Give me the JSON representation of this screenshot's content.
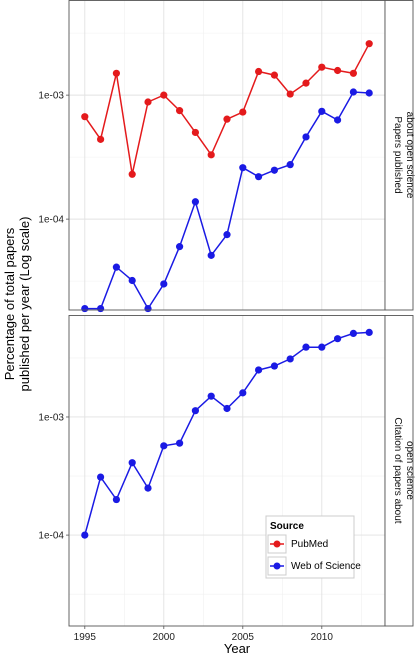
{
  "chart_data": {
    "type": "line",
    "xlabel": "Year",
    "ylabel_lines": [
      "Percentage of total papers",
      "published per year (Log scale)"
    ],
    "log_scale_y": true,
    "grid": true,
    "x_ticks": [
      1995,
      2000,
      2005,
      2010
    ],
    "legend": {
      "title": "Source",
      "placement": "bottom-right panel",
      "entries": [
        {
          "name": "PubMed",
          "color": "#e41a1c"
        },
        {
          "name": "Web of Science",
          "color": "#1a1ae4"
        }
      ]
    },
    "panels": [
      {
        "strip_lines": [
          "Papers published",
          "about open science"
        ],
        "y_ticks": [
          {
            "value": 0.0001,
            "label": "1e-04"
          },
          {
            "value": 0.001,
            "label": "1e-03"
          }
        ],
        "ylim": [
          1.85e-05,
          0.00585
        ],
        "series": [
          {
            "name": "PubMed",
            "color": "#e41a1c",
            "x": [
              1995,
              1996,
              1997,
              1998,
              1999,
              2000,
              2001,
              2002,
              2003,
              2004,
              2005,
              2006,
              2007,
              2008,
              2009,
              2010,
              2011,
              2012,
              2013
            ],
            "values": [
              0.00067,
              0.00044,
              0.0015,
              0.00023,
              0.00088,
              0.001,
              0.00075,
              0.0005,
              0.00033,
              0.00064,
              0.00073,
              0.00155,
              0.00145,
              0.00102,
              0.00125,
              0.00168,
              0.00158,
              0.0015,
              0.0026
            ]
          },
          {
            "name": "Web of Science",
            "color": "#1a1ae4",
            "x": [
              1995,
              1996,
              1997,
              1998,
              1999,
              2000,
              2001,
              2002,
              2003,
              2004,
              2005,
              2006,
              2007,
              2008,
              2009,
              2010,
              2011,
              2012,
              2013
            ],
            "values": [
              1.9e-05,
              1.9e-05,
              4.1e-05,
              3.2e-05,
              1.9e-05,
              3e-05,
              6e-05,
              0.000138,
              5.1e-05,
              7.5e-05,
              0.00026,
              0.00022,
              0.000248,
              0.000275,
              0.00046,
              0.00074,
              0.00063,
              0.00106,
              0.00104
            ]
          }
        ]
      },
      {
        "strip_lines": [
          "Citation of papers about",
          "open science"
        ],
        "y_ticks": [
          {
            "value": 0.0001,
            "label": "1e-04"
          },
          {
            "value": 0.001,
            "label": "1e-03"
          }
        ],
        "ylim": [
          1.7e-05,
          0.0073
        ],
        "series": [
          {
            "name": "Web of Science",
            "color": "#1a1ae4",
            "x": [
              1995,
              1996,
              1997,
              1998,
              1999,
              2000,
              2001,
              2002,
              2003,
              2004,
              2005,
              2006,
              2007,
              2008,
              2009,
              2010,
              2011,
              2012,
              2013
            ],
            "values": [
              0.0001,
              0.00031,
              0.0002,
              0.00041,
              0.00025,
              0.00057,
              0.0006,
              0.00113,
              0.0015,
              0.00118,
              0.0016,
              0.0025,
              0.0027,
              0.0031,
              0.0039,
              0.0039,
              0.0046,
              0.0051,
              0.0052
            ]
          }
        ]
      }
    ]
  }
}
